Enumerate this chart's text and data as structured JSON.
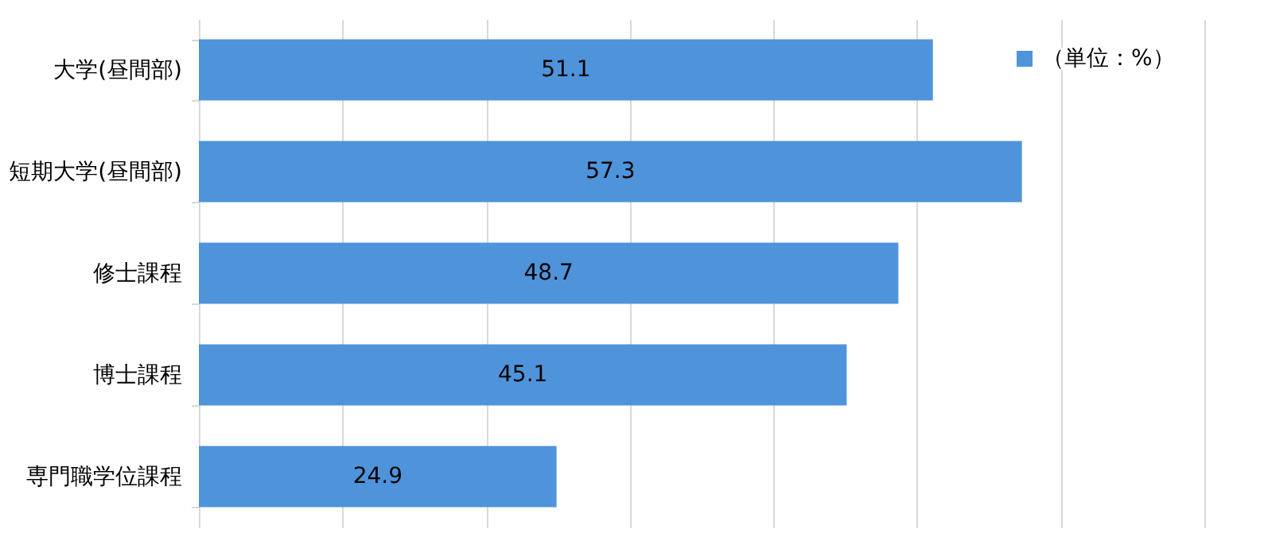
{
  "chart_data": {
    "type": "bar",
    "orientation": "horizontal",
    "categories": [
      "大学(昼間部)",
      "短期大学(昼間部)",
      "修士課程",
      "博士課程",
      "専門職学位課程"
    ],
    "series": [
      {
        "name": "（単位：%）",
        "color": "#4f94da",
        "values": [
          51.1,
          57.3,
          48.7,
          45.1,
          24.9
        ]
      }
    ],
    "xlim": [
      0,
      70
    ],
    "xticks": [
      {
        "value": 0,
        "label": null
      },
      {
        "value": 10,
        "label": null
      },
      {
        "value": 20,
        "label": null
      },
      {
        "value": 30,
        "label": null
      },
      {
        "value": 40,
        "label": null
      },
      {
        "value": 50,
        "label": null
      },
      {
        "value": 60,
        "label": null
      },
      {
        "value": 70,
        "label": null
      }
    ],
    "grid": "x",
    "legend": "top right",
    "tick_labels": "y",
    "data_labels": true
  }
}
